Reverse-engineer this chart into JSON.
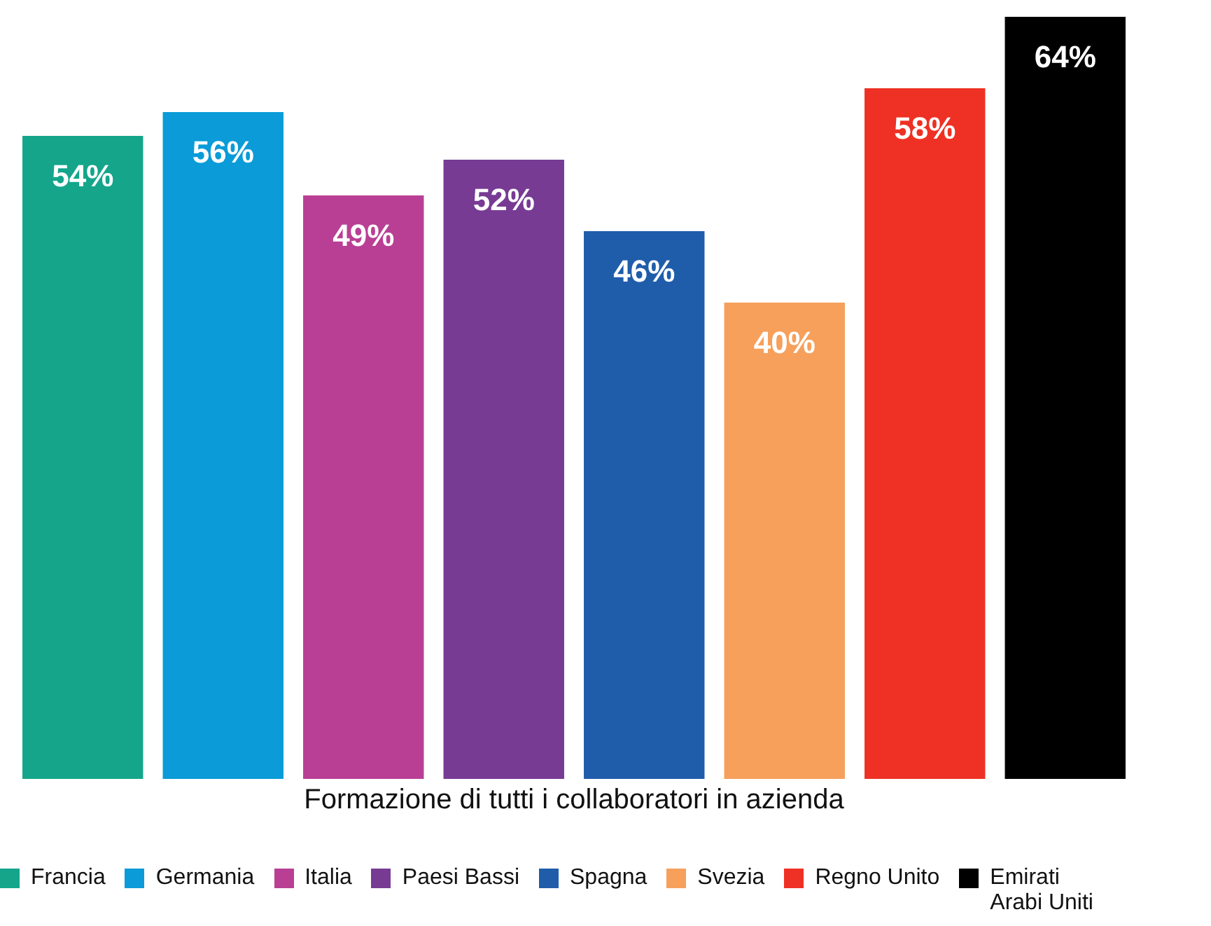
{
  "chart_data": {
    "type": "bar",
    "xlabel": "Formazione di tutti i collaboratori in azienda",
    "categories": [
      null
    ],
    "legend": "bottom",
    "series": [
      {
        "name": "Francia",
        "color": "#14a58b",
        "values": [
          54
        ],
        "value_labels": [
          "54%"
        ]
      },
      {
        "name": "Germania",
        "color": "#0a9bd8",
        "values": [
          56
        ],
        "value_labels": [
          "56%"
        ]
      },
      {
        "name": "Italia",
        "color": "#b93f95",
        "values": [
          49
        ],
        "value_labels": [
          "49%"
        ]
      },
      {
        "name": "Paesi Bassi",
        "color": "#773b94",
        "values": [
          52
        ],
        "value_labels": [
          "52%"
        ]
      },
      {
        "name": "Spagna",
        "color": "#1f5dab",
        "values": [
          46
        ],
        "value_labels": [
          "46%"
        ]
      },
      {
        "name": "Svezia",
        "color": "#f6a05c",
        "values": [
          40
        ],
        "value_labels": [
          "40%"
        ]
      },
      {
        "name": "Regno Unito",
        "color": "#ee3124",
        "values": [
          58
        ],
        "value_labels": [
          "58%"
        ]
      },
      {
        "name": "Emirati Arabi Uniti",
        "color": "#000000",
        "values": [
          64
        ],
        "value_labels": [
          "64%"
        ]
      }
    ]
  }
}
